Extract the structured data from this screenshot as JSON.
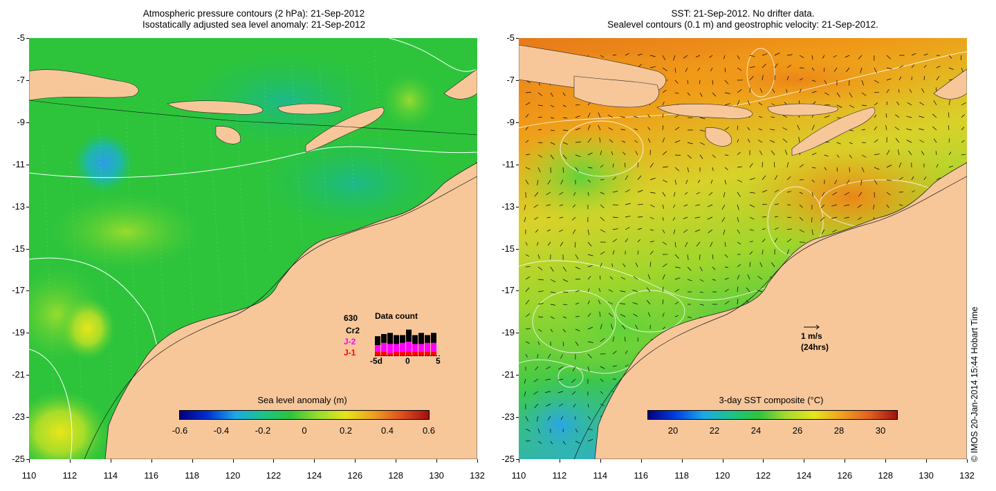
{
  "left_panel": {
    "title_line1": "Atmospheric pressure contours (2 hPa): 21-Sep-2012",
    "title_line2": "Isostatically adjusted sea level anomaly: 21-Sep-2012",
    "colorbar_label": "Sea level anomaly (m)",
    "colorbar_ticks": [
      "-0.6",
      "-0.4",
      "-0.2",
      "0",
      "0.2",
      "0.4",
      "0.6"
    ],
    "colorbar_range": [
      -0.6,
      0.6
    ]
  },
  "right_panel": {
    "title_line1": "SST: 21-Sep-2012. No drifter data.",
    "title_line2": "Sealevel contours (0.1 m) and geostrophic velocity: 21-Sep-2012.",
    "colorbar_label": "3-day SST composite (°C)",
    "colorbar_ticks": [
      "20",
      "22",
      "24",
      "26",
      "28",
      "30"
    ],
    "colorbar_range": [
      18.8,
      30.8
    ],
    "velocity_scale": "1 m/s",
    "velocity_scale_note": "(24hrs)"
  },
  "axes": {
    "lat_ticks": [
      "-5",
      "-7",
      "-9",
      "-11",
      "-13",
      "-15",
      "-17",
      "-19",
      "-21",
      "-23",
      "-25"
    ],
    "lon_ticks": [
      "110",
      "112",
      "114",
      "116",
      "118",
      "120",
      "122",
      "124",
      "126",
      "128",
      "130",
      "132"
    ],
    "lat_range": [
      -25,
      -5
    ],
    "lon_range": [
      110,
      132
    ]
  },
  "data_count": {
    "title": "Data count",
    "total": "630",
    "satellites": [
      {
        "name": "Cr2",
        "color": "#000000"
      },
      {
        "name": "J-2",
        "color": "#ff00ff"
      },
      {
        "name": "J-1",
        "color": "#ff0000"
      }
    ],
    "x_ticks": [
      "-5d",
      "0",
      "5"
    ],
    "bars": [
      {
        "day": -5,
        "j1": 4,
        "j2": 6,
        "cr2": 8
      },
      {
        "day": -4,
        "j1": 4,
        "j2": 8,
        "cr2": 8
      },
      {
        "day": -3,
        "j1": 3,
        "j2": 8,
        "cr2": 10
      },
      {
        "day": -2,
        "j1": 4,
        "j2": 7,
        "cr2": 8
      },
      {
        "day": -1,
        "j1": 4,
        "j2": 8,
        "cr2": 7
      },
      {
        "day": 0,
        "j1": 4,
        "j2": 9,
        "cr2": 11
      },
      {
        "day": 1,
        "j1": 4,
        "j2": 7,
        "cr2": 8
      },
      {
        "day": 2,
        "j1": 4,
        "j2": 7,
        "cr2": 10
      },
      {
        "day": 3,
        "j1": 4,
        "j2": 8,
        "cr2": 7
      },
      {
        "day": 4,
        "j1": 4,
        "j2": 8,
        "cr2": 9
      }
    ]
  },
  "credit": "© IMOS 20-Jan-2014 15:44 Hobart Time",
  "colors": {
    "land": "#f7c79a",
    "sla_base": "#2ec83a",
    "sst_warm": "#f08a18",
    "sst_cool": "#3ab8f0"
  }
}
